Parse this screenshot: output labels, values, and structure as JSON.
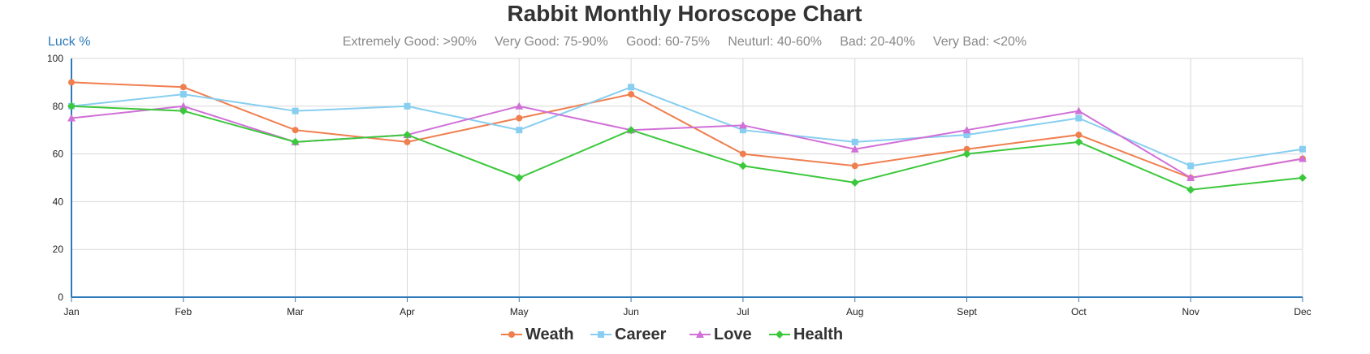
{
  "chart_data": {
    "type": "line",
    "title": "Rabbit Monthly Horoscope Chart",
    "subtitle": "Extremely Good: >90%     Very Good: 75-90%     Good: 60-75%     Neuturl: 40-60%     Bad: 20-40%     Very Bad: <20%",
    "xlabel": "",
    "ylabel": "Luck %",
    "categories": [
      "Jan",
      "Feb",
      "Mar",
      "Apr",
      "May",
      "Jun",
      "Jul",
      "Aug",
      "Sept",
      "Oct",
      "Nov",
      "Dec"
    ],
    "ylim": [
      0,
      100
    ],
    "yticks": [
      0,
      20,
      40,
      60,
      80,
      100
    ],
    "grid": true,
    "legend_position": "bottom",
    "series": [
      {
        "name": "Weath",
        "color": "#f07f4f",
        "marker": "circle",
        "values": [
          90,
          88,
          70,
          65,
          75,
          85,
          60,
          55,
          62,
          68,
          50,
          58
        ]
      },
      {
        "name": "Career",
        "color": "#87cef0",
        "marker": "square",
        "values": [
          80,
          85,
          78,
          80,
          70,
          88,
          70,
          65,
          68,
          75,
          55,
          62
        ]
      },
      {
        "name": "Love",
        "color": "#d070d8",
        "marker": "triangle",
        "values": [
          75,
          80,
          65,
          68,
          80,
          70,
          72,
          62,
          70,
          78,
          50,
          58
        ]
      },
      {
        "name": "Health",
        "color": "#3cc83c",
        "marker": "diamond",
        "values": [
          80,
          78,
          65,
          68,
          50,
          70,
          55,
          48,
          60,
          65,
          45,
          50
        ]
      }
    ]
  }
}
